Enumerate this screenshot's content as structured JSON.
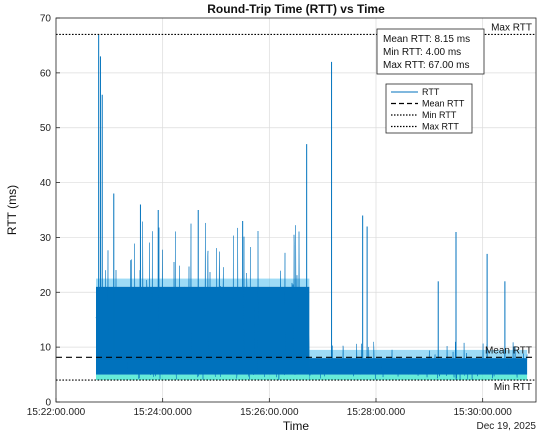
{
  "chart_data": {
    "type": "line",
    "title": "Round-Trip Time (RTT) vs Time",
    "xlabel": "Time",
    "ylabel": "RTT (ms)",
    "date_label": "Dec 19, 2025",
    "x_range": [
      "15:22:00.000",
      "15:31:00.000"
    ],
    "ylim": [
      0,
      70
    ],
    "x_ticks": [
      "15:22:00.000",
      "15:24:00.000",
      "15:26:00.000",
      "15:28:00.000",
      "15:30:00.000"
    ],
    "y_ticks": [
      0,
      10,
      20,
      30,
      40,
      50,
      60,
      70
    ],
    "grid": true,
    "legend_position": "top-right",
    "legend": [
      "RTT",
      "Mean RTT",
      "Min RTT",
      "Max RTT"
    ],
    "series": [
      {
        "name": "RTT",
        "color": "#0072bd",
        "segments": [
          {
            "start": "15:22:45.000",
            "end": "15:26:45.000",
            "typical_low": 5,
            "typical_high": 21,
            "min": 4,
            "max": 67
          },
          {
            "start": "15:26:45.000",
            "end": "15:30:50.000",
            "typical_low": 5,
            "typical_high": 8,
            "min": 4,
            "max": 62
          }
        ],
        "notable_peaks": [
          {
            "time": "15:22:48.000",
            "value": 67
          },
          {
            "time": "15:22:50.000",
            "value": 63
          },
          {
            "time": "15:22:52.000",
            "value": 56
          },
          {
            "time": "15:23:05.000",
            "value": 38
          },
          {
            "time": "15:23:35.000",
            "value": 36
          },
          {
            "time": "15:23:55.000",
            "value": 35
          },
          {
            "time": "15:24:40.000",
            "value": 35
          },
          {
            "time": "15:25:30.000",
            "value": 33
          },
          {
            "time": "15:26:42.000",
            "value": 47
          },
          {
            "time": "15:27:10.000",
            "value": 62
          },
          {
            "time": "15:27:45.000",
            "value": 34
          },
          {
            "time": "15:27:50.000",
            "value": 32
          },
          {
            "time": "15:29:30.000",
            "value": 31
          },
          {
            "time": "15:29:10.000",
            "value": 22
          },
          {
            "time": "15:30:05.000",
            "value": 27
          },
          {
            "time": "15:30:25.000",
            "value": 22
          }
        ]
      }
    ],
    "reference_lines": [
      {
        "name": "Mean RTT",
        "value": 8.15,
        "style": "dashed",
        "label": "Mean RTT"
      },
      {
        "name": "Min RTT",
        "value": 4.0,
        "style": "dotted",
        "label": "Min RTT"
      },
      {
        "name": "Max RTT",
        "value": 67.0,
        "style": "dotted",
        "label": "Max RTT"
      }
    ],
    "stats_box": [
      "Mean RTT: 8.15 ms",
      "Min RTT: 4.00 ms",
      "Max RTT: 67.00 ms"
    ],
    "colors": {
      "rtt": "#0072bd",
      "rtt_light": "#4dbeee",
      "min_band": "#33e6cc",
      "reference": "#000000"
    }
  }
}
